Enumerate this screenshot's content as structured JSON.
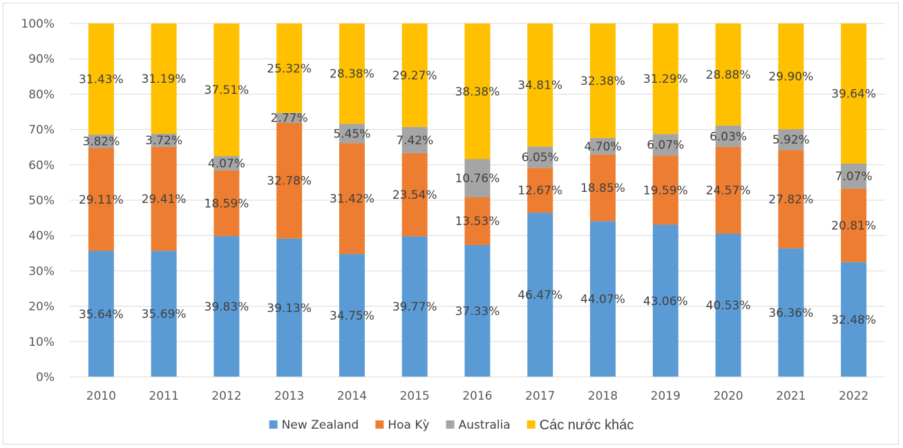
{
  "chart_data": {
    "type": "bar",
    "stacked": true,
    "percent": true,
    "title": "",
    "xlabel": "",
    "ylabel": "",
    "ylim": [
      0,
      100
    ],
    "yticks": [
      "0%",
      "10%",
      "20%",
      "30%",
      "40%",
      "50%",
      "60%",
      "70%",
      "80%",
      "90%",
      "100%"
    ],
    "grid": true,
    "legend_position": "bottom",
    "categories": [
      "2010",
      "2011",
      "2012",
      "2013",
      "2014",
      "2015",
      "2016",
      "2017",
      "2018",
      "2019",
      "2020",
      "2021",
      "2022"
    ],
    "series": [
      {
        "name": "New Zealand",
        "color": "#5b9bd5",
        "values": [
          35.64,
          35.69,
          39.83,
          39.13,
          34.75,
          39.77,
          37.33,
          46.47,
          44.07,
          43.06,
          40.53,
          36.36,
          32.48
        ],
        "labels": [
          "35.64%",
          "35.69%",
          "39.83%",
          "39.13%",
          "34.75%",
          "39.77%",
          "37.33%",
          "46.47%",
          "44.07%",
          "43.06%",
          "40.53%",
          "36.36%",
          "32.48%"
        ]
      },
      {
        "name": "Hoa Kỳ",
        "color": "#ed7d31",
        "values": [
          29.11,
          29.41,
          18.59,
          32.78,
          31.42,
          23.54,
          13.53,
          12.67,
          18.85,
          19.59,
          24.57,
          27.82,
          20.81
        ],
        "labels": [
          "29.11%",
          "29.41%",
          "18.59%",
          "32.78%",
          "31.42%",
          "23.54%",
          "13.53%",
          "12.67%",
          "18.85%",
          "19.59%",
          "24.57%",
          "27.82%",
          "20.81%"
        ]
      },
      {
        "name": "Australia",
        "color": "#a5a5a5",
        "values": [
          3.82,
          3.72,
          4.07,
          2.77,
          5.45,
          7.42,
          10.76,
          6.05,
          4.7,
          6.07,
          6.03,
          5.92,
          7.07
        ],
        "labels": [
          "3.82%",
          "3.72%",
          "4.07%",
          "2.77%",
          "5.45%",
          "7.42%",
          "10.76%",
          "6.05%",
          "4.70%",
          "6.07%",
          "6.03%",
          "5.92%",
          "7.07%"
        ]
      },
      {
        "name": "Các nước khác",
        "color": "#ffc000",
        "values": [
          31.43,
          31.19,
          37.51,
          25.32,
          28.38,
          29.27,
          38.38,
          34.81,
          32.38,
          31.29,
          28.88,
          29.9,
          39.64
        ],
        "labels": [
          "31.43%",
          "31.19%",
          "37.51%",
          "25.32%",
          "28.38%",
          "29.27%",
          "38.38%",
          "34.81%",
          "32.38%",
          "31.29%",
          "28.88%",
          "29.90%",
          "39.64%"
        ]
      }
    ]
  }
}
